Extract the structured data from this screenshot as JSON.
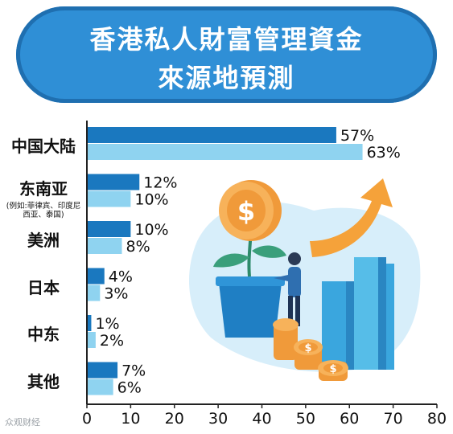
{
  "title": {
    "line1": "香港私人財富管理資金",
    "line2": "來源地預測"
  },
  "watermark": "众观财经",
  "colors": {
    "title_bg": "#2f8fd6",
    "series_dark": "#1a78bf",
    "series_light": "#8fd3f0",
    "axis": "#222222"
  },
  "chart_data": {
    "type": "bar",
    "orientation": "horizontal",
    "categories": [
      "中国大陆",
      "东南亚",
      "美洲",
      "日本",
      "中东",
      "其他"
    ],
    "category_notes": [
      "",
      "(例如:菲律宾、印度尼西亚、泰国)",
      "",
      "",
      "",
      ""
    ],
    "series": [
      {
        "values": [
          57,
          12,
          10,
          4,
          1,
          7
        ]
      },
      {
        "values": [
          63,
          10,
          8,
          3,
          2,
          6
        ]
      }
    ],
    "xlim": [
      0,
      80
    ],
    "xticks": [
      0,
      10,
      20,
      30,
      40,
      50,
      60,
      70,
      80
    ],
    "value_suffix": "%",
    "title": "",
    "xlabel": "",
    "ylabel": "",
    "grid": false,
    "legend": "none"
  }
}
